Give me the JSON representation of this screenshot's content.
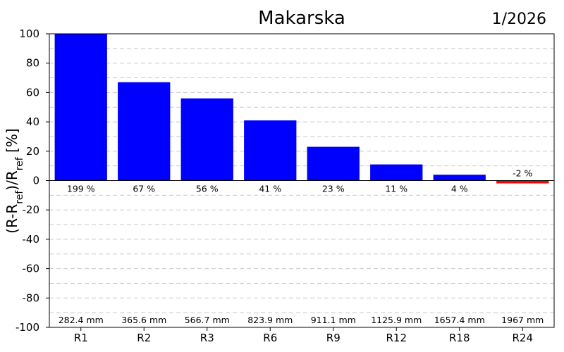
{
  "chart_data": {
    "type": "bar",
    "title": "Makarska",
    "period": "1/2026",
    "ylabel": {
      "main": "(R-R",
      "sub1": "ref",
      "mid": ")/R",
      "sub2": "ref",
      "end": " [%]"
    },
    "ylim": [
      -100,
      100
    ],
    "yticks": [
      100,
      80,
      60,
      40,
      20,
      0,
      -20,
      -40,
      -60,
      -80,
      -100
    ],
    "grid": true,
    "categories": [
      "R1",
      "R2",
      "R3",
      "R6",
      "R9",
      "R12",
      "R18",
      "R24"
    ],
    "values": [
      199,
      67,
      56,
      41,
      23,
      11,
      4,
      -2
    ],
    "value_labels": [
      "199 %",
      "67 %",
      "56 %",
      "41 %",
      "23 %",
      "11 %",
      "4 %",
      "-2 %"
    ],
    "amount_labels": [
      "282.4 mm",
      "365.6 mm",
      "566.7 mm",
      "823.9 mm",
      "911.1 mm",
      "1125.9 mm",
      "1657.4 mm",
      "1967 mm"
    ],
    "colors": {
      "positive": "#0000ff",
      "negative": "#ff0000",
      "grid": "#c8c8c8",
      "axis": "#000000"
    }
  }
}
